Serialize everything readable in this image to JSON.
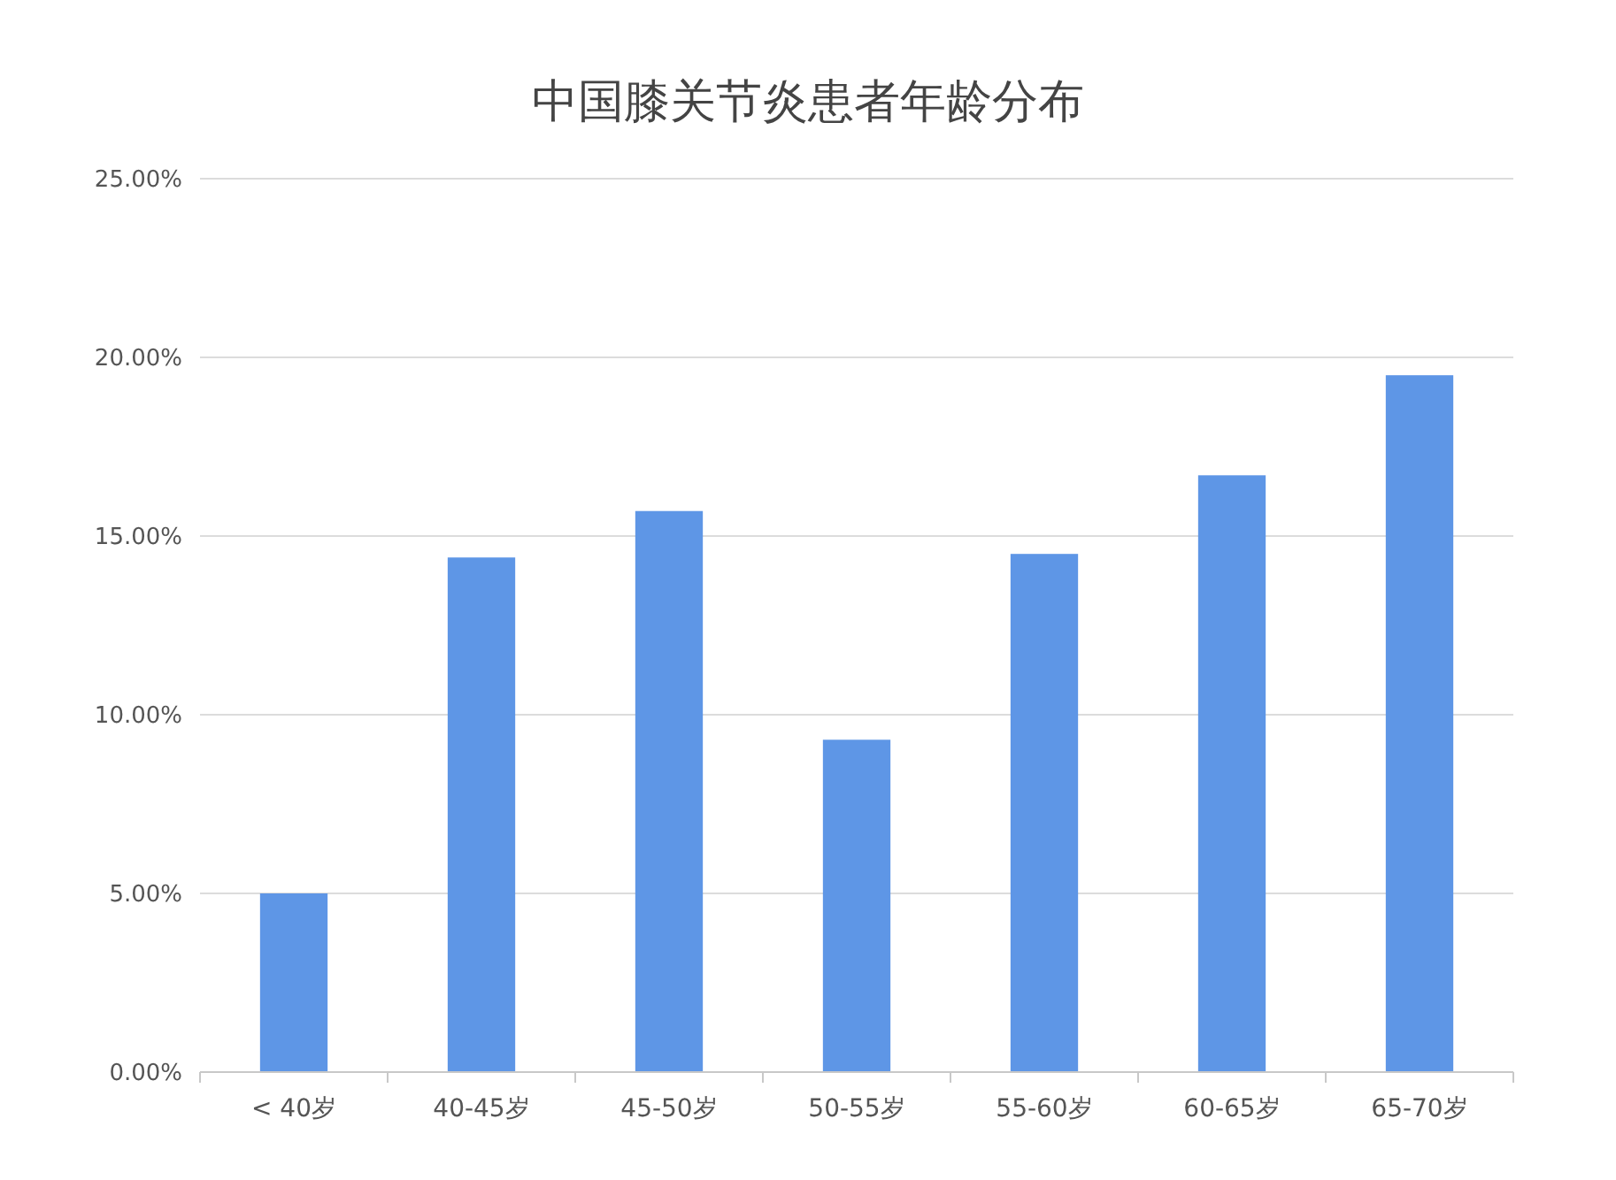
{
  "chart_data": {
    "type": "bar",
    "title": "中国膝关节炎患者年龄分布",
    "categories": [
      "< 40岁",
      "40-45岁",
      "45-50岁",
      "50-55岁",
      "55-60岁",
      "60-65岁",
      "65-70岁"
    ],
    "values": [
      5.0,
      14.4,
      15.7,
      9.3,
      14.5,
      16.7,
      19.5
    ],
    "color": "#5e96e6",
    "ylim": [
      0,
      25
    ],
    "yticks": [
      {
        "value": 0,
        "label": "0.00%"
      },
      {
        "value": 5,
        "label": "5.00%"
      },
      {
        "value": 10,
        "label": "10.00%"
      },
      {
        "value": 15,
        "label": "15.00%"
      },
      {
        "value": 20,
        "label": "20.00%"
      },
      {
        "value": 25,
        "label": "25.00%"
      }
    ],
    "grid": "y"
  }
}
